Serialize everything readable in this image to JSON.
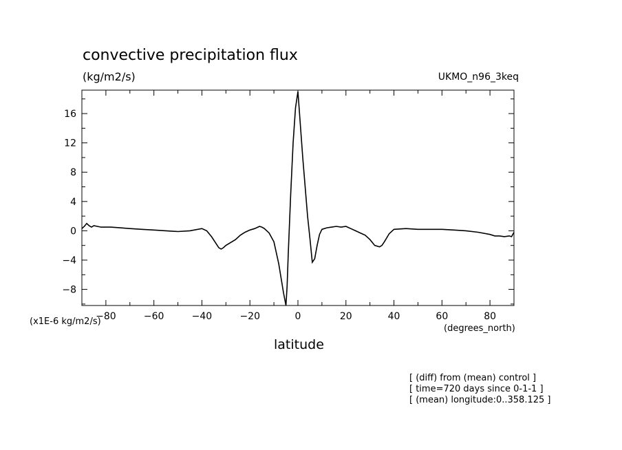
{
  "chart_data": {
    "type": "line",
    "title": "convective precipitation flux",
    "units": "(kg/m2/s)",
    "model": "UKMO_n96_3keq",
    "y_scale_label": "(x1E-6 kg/m2/s)",
    "xlabel": "latitude",
    "x_units": "(degrees_north)",
    "xlim": [
      -90,
      90
    ],
    "ylim": [
      -10.2,
      19.2
    ],
    "x_ticks": [
      -80,
      -60,
      -40,
      -20,
      0,
      20,
      40,
      60,
      80
    ],
    "y_ticks": [
      -8,
      -4,
      0,
      4,
      8,
      12,
      16
    ],
    "grid": false,
    "legend": "none",
    "line_color": "#000000",
    "series": [
      {
        "x": [
          -90,
          -89,
          -88,
          -87,
          -86,
          -85,
          -82,
          -78,
          -74,
          -70,
          -65,
          -60,
          -55,
          -50,
          -45,
          -40,
          -38,
          -36,
          -34,
          -33,
          -32,
          -31,
          -30,
          -28,
          -26,
          -24,
          -22,
          -20,
          -18,
          -16,
          -15,
          -14,
          -12,
          -10,
          -8,
          -7,
          -6,
          -5,
          -4.5,
          -4,
          -3,
          -2,
          -1,
          0,
          1,
          2,
          3,
          4,
          5,
          6,
          7,
          8,
          9,
          10,
          12,
          14,
          16,
          18,
          20,
          22,
          24,
          26,
          28,
          30,
          32,
          34,
          35,
          36,
          38,
          40,
          45,
          50,
          55,
          60,
          65,
          70,
          75,
          80,
          82,
          84,
          86,
          88,
          89,
          90
        ],
        "y": [
          0.3,
          0.6,
          1.0,
          0.7,
          0.5,
          0.7,
          0.5,
          0.5,
          0.4,
          0.3,
          0.2,
          0.1,
          0.0,
          -0.1,
          0.0,
          0.3,
          0.0,
          -0.8,
          -1.8,
          -2.3,
          -2.5,
          -2.3,
          -2.0,
          -1.6,
          -1.2,
          -0.6,
          -0.2,
          0.1,
          0.3,
          0.6,
          0.5,
          0.3,
          -0.3,
          -1.5,
          -4.5,
          -6.5,
          -8.5,
          -10.2,
          -7.5,
          -3.0,
          5.0,
          12.0,
          16.8,
          19.0,
          14.5,
          10.0,
          6.0,
          2.0,
          -1.0,
          -4.3,
          -3.8,
          -2.0,
          -0.5,
          0.2,
          0.4,
          0.5,
          0.6,
          0.5,
          0.6,
          0.3,
          0.0,
          -0.3,
          -0.6,
          -1.2,
          -2.0,
          -2.2,
          -2.0,
          -1.5,
          -0.4,
          0.2,
          0.3,
          0.2,
          0.2,
          0.2,
          0.1,
          0.0,
          -0.2,
          -0.5,
          -0.7,
          -0.7,
          -0.8,
          -0.7,
          -0.8,
          -0.2
        ]
      }
    ]
  },
  "footnotes": [
    "[ (diff) from (mean) control ]",
    "[ time=720 days since 0-1-1 ]",
    "[ (mean) longitude:0..358.125 ]"
  ]
}
